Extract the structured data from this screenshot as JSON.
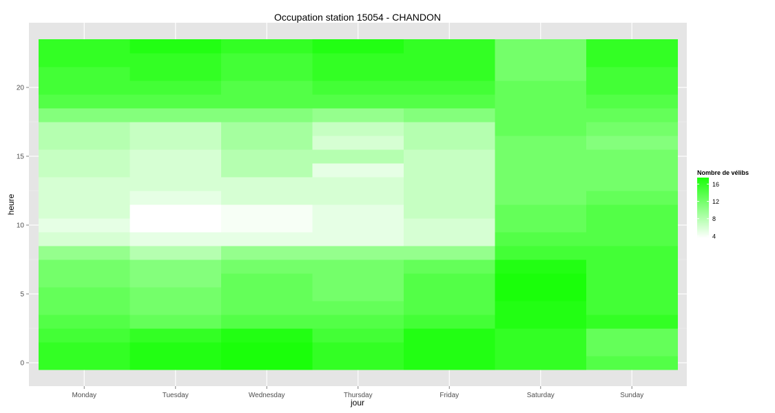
{
  "chart_data": {
    "type": "heatmap",
    "title": "Occupation station 15054 - CHANDON",
    "xlabel": "jour",
    "ylabel": "heure",
    "x_categories": [
      "Monday",
      "Tuesday",
      "Wednesday",
      "Thursday",
      "Friday",
      "Saturday",
      "Sunday"
    ],
    "y_values": [
      0,
      1,
      2,
      3,
      4,
      5,
      6,
      7,
      8,
      9,
      10,
      11,
      12,
      13,
      14,
      15,
      16,
      17,
      18,
      19,
      20,
      21,
      22,
      23
    ],
    "ylim": [
      -0.5,
      23.5
    ],
    "y_ticks": [
      0,
      5,
      10,
      15,
      20
    ],
    "grid": true,
    "legend": {
      "title": "Nombre de vélibs",
      "position": "right",
      "ticks": [
        4,
        8,
        12,
        16
      ],
      "range": [
        3.5,
        17.5
      ],
      "low_color": "#ffffff",
      "high_color": "#1aff0a"
    },
    "values": [
      [
        16,
        17,
        18,
        16,
        17,
        16,
        14
      ],
      [
        16,
        17,
        18,
        16,
        17,
        16,
        13
      ],
      [
        15,
        16,
        17,
        15,
        17,
        16,
        13
      ],
      [
        14,
        13,
        14,
        14,
        15,
        17,
        16
      ],
      [
        13,
        12,
        13,
        13,
        14,
        17,
        15
      ],
      [
        13,
        12,
        13,
        12,
        14,
        18,
        15
      ],
      [
        12,
        11,
        13,
        12,
        14,
        18,
        15
      ],
      [
        12,
        11,
        12,
        12,
        13,
        17,
        15
      ],
      [
        10,
        8,
        10,
        10,
        10,
        15,
        15
      ],
      [
        6,
        5,
        5,
        5,
        6,
        14,
        14
      ],
      [
        5,
        3.5,
        4,
        5,
        6,
        13,
        14
      ],
      [
        6,
        3.5,
        4,
        5,
        7,
        13,
        14
      ],
      [
        6,
        5,
        6,
        6,
        7,
        12,
        13
      ],
      [
        6,
        6,
        6,
        6,
        7,
        12,
        12
      ],
      [
        7,
        6,
        8,
        5,
        7,
        12,
        12
      ],
      [
        7,
        6,
        8,
        8,
        7,
        12,
        12
      ],
      [
        8,
        7,
        9,
        6,
        8,
        12,
        11
      ],
      [
        8,
        7,
        9,
        7,
        8,
        13,
        12
      ],
      [
        11,
        11,
        11,
        10,
        11,
        13,
        13
      ],
      [
        14,
        14,
        14,
        14,
        14,
        13,
        14
      ],
      [
        15,
        15,
        14,
        15,
        15,
        13,
        15
      ],
      [
        15,
        16,
        15,
        16,
        16,
        12,
        15
      ],
      [
        16,
        16,
        15,
        16,
        16,
        12,
        16
      ],
      [
        16,
        17,
        16,
        17,
        16,
        12,
        16
      ]
    ]
  }
}
